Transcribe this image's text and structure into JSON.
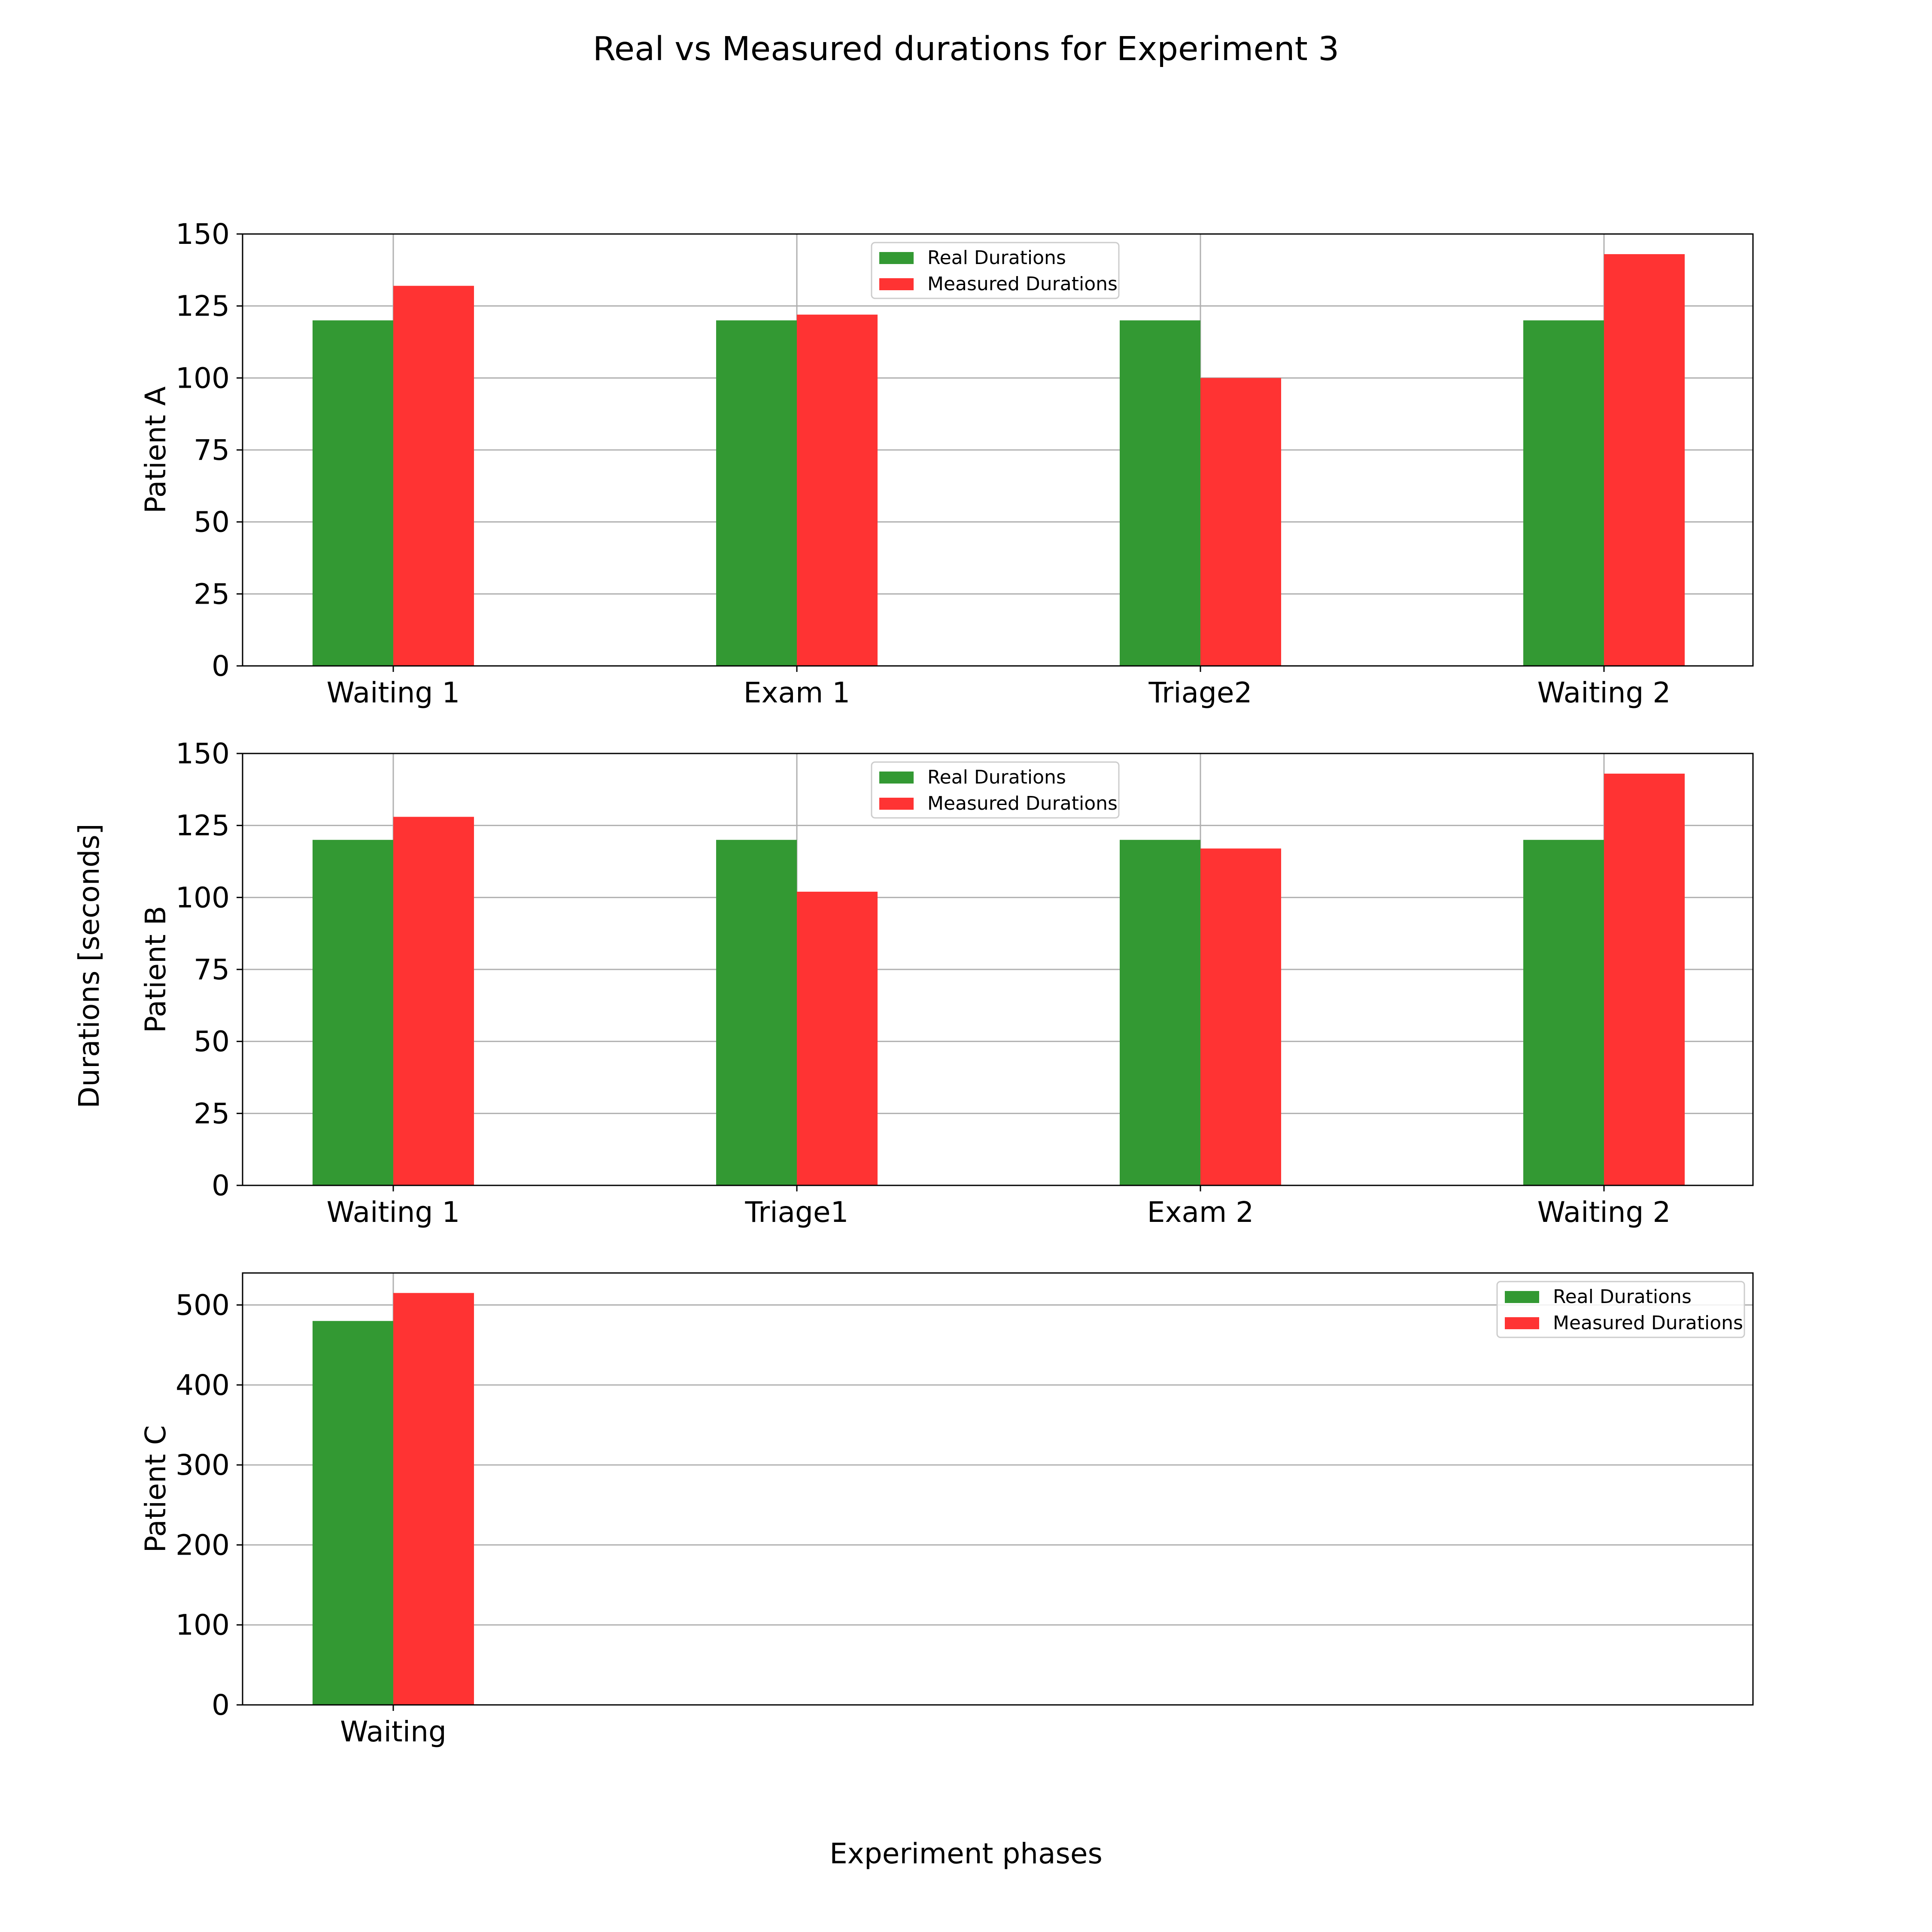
{
  "chart_data": {
    "type": "bar",
    "title": "Real vs Measured durations for Experiment 3",
    "xlabel": "Experiment phases",
    "ylabel": "Durations [seconds]",
    "grid": true,
    "series_names": [
      "Real Durations",
      "Measured Durations"
    ],
    "colors": {
      "real": "#339933",
      "measured": "#ff3333",
      "grid": "#b0b0b0",
      "axis": "#000000"
    },
    "subplots": [
      {
        "ylabel": "Patient A",
        "ylim": [
          0,
          150
        ],
        "yticks": [
          0,
          25,
          50,
          75,
          100,
          125,
          150
        ],
        "categories": [
          "Waiting 1",
          "Exam 1",
          "Triage2",
          "Waiting 2"
        ],
        "real": [
          120,
          120,
          120,
          120
        ],
        "measured": [
          132,
          122,
          100,
          143
        ],
        "legend_position": "top-center"
      },
      {
        "ylabel": "Patient B",
        "ylim": [
          0,
          150
        ],
        "yticks": [
          0,
          25,
          50,
          75,
          100,
          125,
          150
        ],
        "categories": [
          "Waiting 1",
          "Triage1",
          "Exam 2",
          "Waiting 2"
        ],
        "real": [
          120,
          120,
          120,
          120
        ],
        "measured": [
          128,
          102,
          117,
          143
        ],
        "legend_position": "top-center"
      },
      {
        "ylabel": "Patient C",
        "ylim": [
          0,
          540
        ],
        "yticks": [
          0,
          100,
          200,
          300,
          400,
          500
        ],
        "categories": [
          "Waiting"
        ],
        "real": [
          480
        ],
        "measured": [
          515
        ],
        "legend_position": "top-right"
      }
    ]
  }
}
